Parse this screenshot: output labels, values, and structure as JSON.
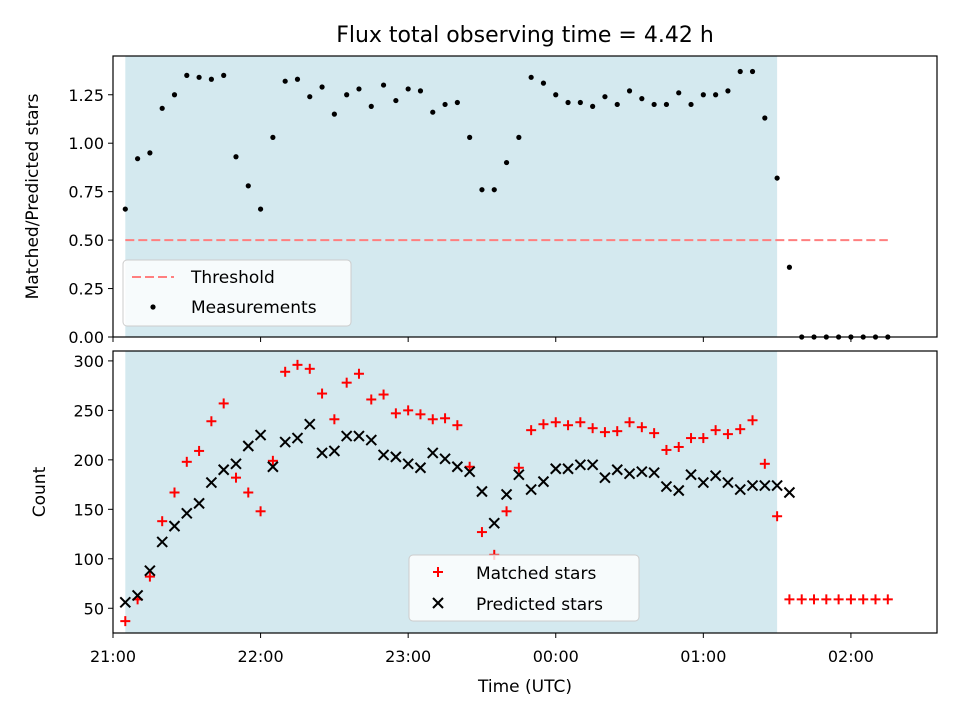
{
  "title": "Flux total observing time = 4.42 h",
  "colors": {
    "observing_span": "#d4e9ef",
    "threshold": "#ff7f7f",
    "measurements": "#000000",
    "matched": "#ff0000",
    "predicted": "#000000"
  },
  "chart_data": [
    {
      "type": "scatter",
      "ylabel": "Matched/Predicted stars",
      "xlabel": "",
      "xlim": [
        "21:00",
        "02:35"
      ],
      "ylim": [
        0,
        1.45
      ],
      "yticks": [
        "0.00",
        "0.25",
        "0.50",
        "0.75",
        "1.00",
        "1.25"
      ],
      "shaded_span": {
        "start": "21:05",
        "end": "01:30"
      },
      "legend": {
        "position": "lower-left",
        "entries": [
          "Threshold",
          "Measurements"
        ]
      },
      "threshold": {
        "name": "Threshold",
        "value": 0.5,
        "x_start": "21:05",
        "x_end": "02:15"
      },
      "series": [
        {
          "name": "Measurements",
          "marker": "dot",
          "x": [
            "21:05",
            "21:10",
            "21:15",
            "21:20",
            "21:25",
            "21:30",
            "21:35",
            "21:40",
            "21:45",
            "21:50",
            "21:55",
            "22:00",
            "22:05",
            "22:10",
            "22:15",
            "22:20",
            "22:25",
            "22:30",
            "22:35",
            "22:40",
            "22:45",
            "22:50",
            "22:55",
            "23:00",
            "23:05",
            "23:10",
            "23:15",
            "23:20",
            "23:25",
            "23:30",
            "23:35",
            "23:40",
            "23:45",
            "23:50",
            "23:55",
            "00:00",
            "00:05",
            "00:10",
            "00:15",
            "00:20",
            "00:25",
            "00:30",
            "00:35",
            "00:40",
            "00:45",
            "00:50",
            "00:55",
            "01:00",
            "01:05",
            "01:10",
            "01:15",
            "01:20",
            "01:25",
            "01:30",
            "01:35",
            "01:40",
            "01:45",
            "01:50",
            "01:55",
            "02:00",
            "02:05",
            "02:10",
            "02:15"
          ],
          "y": [
            0.66,
            0.92,
            0.95,
            1.18,
            1.25,
            1.35,
            1.34,
            1.33,
            1.35,
            0.93,
            0.78,
            0.66,
            1.03,
            1.32,
            1.33,
            1.24,
            1.29,
            1.15,
            1.25,
            1.28,
            1.19,
            1.3,
            1.22,
            1.28,
            1.27,
            1.16,
            1.2,
            1.21,
            1.03,
            0.76,
            0.76,
            0.9,
            1.03,
            1.34,
            1.31,
            1.25,
            1.21,
            1.21,
            1.19,
            1.24,
            1.2,
            1.27,
            1.23,
            1.2,
            1.2,
            1.26,
            1.2,
            1.25,
            1.25,
            1.27,
            1.37,
            1.37,
            1.13,
            0.82,
            0.36,
            0.0,
            0.0,
            0.0,
            0.0,
            0.0,
            0.0,
            0.0,
            0.0
          ]
        }
      ]
    },
    {
      "type": "scatter",
      "ylabel": "Count",
      "xlabel": "Time (UTC)",
      "xlim": [
        "21:00",
        "02:35"
      ],
      "ylim": [
        25,
        310
      ],
      "yticks": [
        "50",
        "100",
        "150",
        "200",
        "250",
        "300"
      ],
      "xticks": [
        "21:00",
        "22:00",
        "23:00",
        "00:00",
        "01:00",
        "02:00"
      ],
      "shaded_span": {
        "start": "21:05",
        "end": "01:30"
      },
      "legend": {
        "position": "lower-center",
        "entries": [
          "Matched stars",
          "Predicted stars"
        ]
      },
      "series": [
        {
          "name": "Matched stars",
          "marker": "plus",
          "x": [
            "21:05",
            "21:10",
            "21:15",
            "21:20",
            "21:25",
            "21:30",
            "21:35",
            "21:40",
            "21:45",
            "21:50",
            "21:55",
            "22:00",
            "22:05",
            "22:10",
            "22:15",
            "22:20",
            "22:25",
            "22:30",
            "22:35",
            "22:40",
            "22:45",
            "22:50",
            "22:55",
            "23:00",
            "23:05",
            "23:10",
            "23:15",
            "23:20",
            "23:25",
            "23:30",
            "23:35",
            "23:40",
            "23:45",
            "23:50",
            "23:55",
            "00:00",
            "00:05",
            "00:10",
            "00:15",
            "00:20",
            "00:25",
            "00:30",
            "00:35",
            "00:40",
            "00:45",
            "00:50",
            "00:55",
            "01:00",
            "01:05",
            "01:10",
            "01:15",
            "01:20",
            "01:25",
            "01:30",
            "01:35",
            "01:40",
            "01:45",
            "01:50",
            "01:55",
            "02:00",
            "02:05",
            "02:10",
            "02:15"
          ],
          "y": [
            37,
            59,
            82,
            138,
            167,
            198,
            209,
            239,
            257,
            182,
            167,
            148,
            199,
            289,
            296,
            292,
            267,
            241,
            278,
            287,
            261,
            266,
            247,
            250,
            246,
            241,
            242,
            235,
            193,
            127,
            104,
            148,
            192,
            230,
            236,
            238,
            235,
            238,
            232,
            228,
            229,
            238,
            233,
            227,
            210,
            213,
            222,
            222,
            230,
            226,
            231,
            240,
            196,
            143,
            59,
            59,
            59,
            59,
            59,
            59,
            59,
            59,
            59
          ]
        },
        {
          "name": "Predicted stars",
          "marker": "cross",
          "x": [
            "21:05",
            "21:10",
            "21:15",
            "21:20",
            "21:25",
            "21:30",
            "21:35",
            "21:40",
            "21:45",
            "21:50",
            "21:55",
            "22:00",
            "22:05",
            "22:10",
            "22:15",
            "22:20",
            "22:25",
            "22:30",
            "22:35",
            "22:40",
            "22:45",
            "22:50",
            "22:55",
            "23:00",
            "23:05",
            "23:10",
            "23:15",
            "23:20",
            "23:25",
            "23:30",
            "23:35",
            "23:40",
            "23:45",
            "23:50",
            "23:55",
            "00:00",
            "00:05",
            "00:10",
            "00:15",
            "00:20",
            "00:25",
            "00:30",
            "00:35",
            "00:40",
            "00:45",
            "00:50",
            "00:55",
            "01:00",
            "01:05",
            "01:10",
            "01:15",
            "01:20",
            "01:25",
            "01:30",
            "01:35"
          ],
          "y": [
            56,
            63,
            88,
            117,
            133,
            146,
            156,
            177,
            190,
            196,
            214,
            225,
            193,
            218,
            222,
            236,
            207,
            209,
            224,
            224,
            220,
            205,
            203,
            196,
            192,
            207,
            201,
            193,
            188,
            168,
            136,
            165,
            185,
            170,
            178,
            191,
            191,
            195,
            195,
            182,
            190,
            186,
            188,
            187,
            173,
            169,
            185,
            177,
            184,
            177,
            170,
            174,
            174,
            174,
            167
          ]
        }
      ]
    }
  ]
}
